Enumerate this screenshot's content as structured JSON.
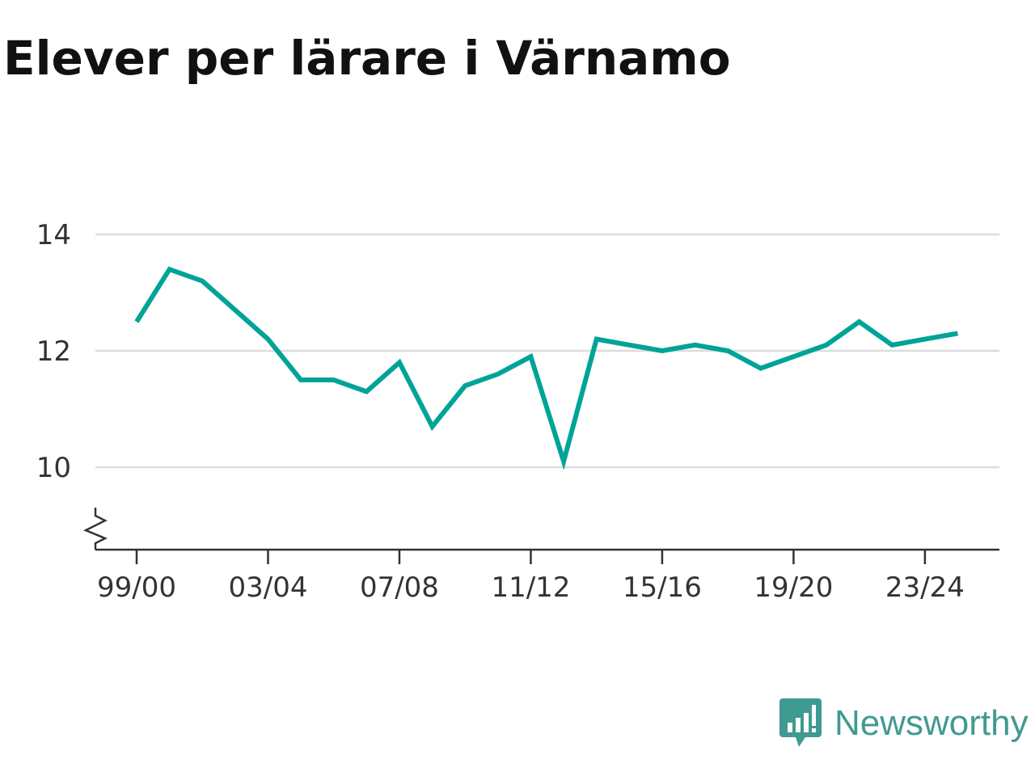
{
  "chart_data": {
    "type": "line",
    "title": "Elever per lärare i Värnamo",
    "xlabel": "",
    "ylabel": "",
    "x": [
      "99/00",
      "00/01",
      "01/02",
      "02/03",
      "03/04",
      "04/05",
      "05/06",
      "06/07",
      "07/08",
      "08/09",
      "09/10",
      "10/11",
      "11/12",
      "12/13",
      "13/14",
      "14/15",
      "15/16",
      "16/17",
      "17/18",
      "18/19",
      "19/20",
      "20/21",
      "21/22",
      "22/23",
      "23/24",
      "24/25"
    ],
    "series": [
      {
        "values": [
          12.5,
          13.4,
          13.2,
          12.7,
          12.2,
          11.5,
          11.5,
          11.3,
          11.8,
          10.7,
          11.4,
          11.6,
          11.9,
          10.1,
          12.2,
          12.1,
          12.0,
          12.1,
          12.0,
          11.7,
          11.9,
          12.1,
          12.5,
          12.1,
          12.2,
          12.3
        ],
        "color": "#00a398"
      }
    ],
    "x_tick_labels": [
      "99/00",
      "03/04",
      "07/08",
      "11/12",
      "15/16",
      "19/20",
      "23/24"
    ],
    "y_ticks": [
      10,
      12,
      14
    ],
    "ylim": [
      8.6,
      14
    ],
    "y_axis_break": true,
    "grid": true,
    "legend": "none"
  },
  "brand": {
    "name": "Newsworthy",
    "color": "#3f9a92"
  }
}
